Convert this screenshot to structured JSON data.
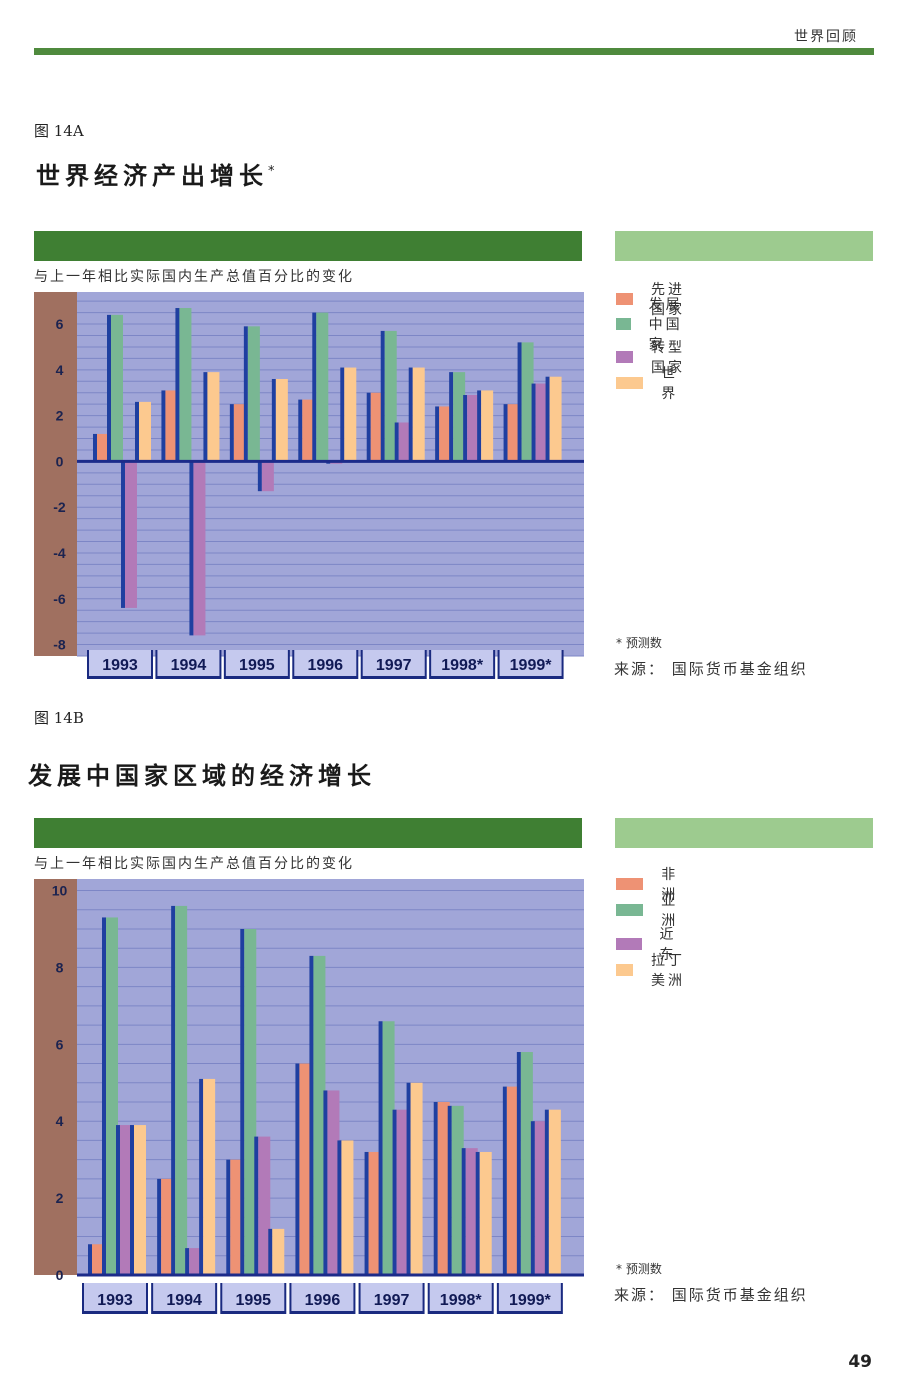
{
  "page": {
    "running_head": "世界回顾",
    "page_number": "49"
  },
  "colors": {
    "rule": "#4f8a3d",
    "band_dark": "#3f7f33",
    "band_light": "#9dcb8f",
    "plot_bg": "#a1a6d8",
    "axis_strip": "#a07060",
    "zero_line": "#1c2b8a",
    "bar_side": "#1f3fa0",
    "series": [
      "#ee9274",
      "#79b793",
      "#b27ab8",
      "#fcc98f"
    ]
  },
  "figure_a": {
    "label": "图 14A",
    "title": "世界经济产出增长",
    "title_mark": "*",
    "subtitle": "与上一年相比实际国内生产总值百分比的变化",
    "note": "* 预测数",
    "source": "来源： 国际货币基金组织"
  },
  "figure_b": {
    "label": "图 14B",
    "title": "发展中国家区域的经济增长",
    "subtitle": "与上一年相比实际国内生产总值百分比的变化",
    "note": "* 预测数",
    "source": "来源： 国际货币基金组织"
  },
  "chart_data": [
    {
      "type": "bar",
      "id": "figure_a",
      "categories": [
        "1993",
        "1994",
        "1995",
        "1996",
        "1997",
        "1998*",
        "1999*"
      ],
      "series": [
        {
          "name": "先进国家",
          "values": [
            1.2,
            3.1,
            2.5,
            2.7,
            3.0,
            2.4,
            2.5
          ]
        },
        {
          "name": "发展中国家",
          "values": [
            6.4,
            6.7,
            5.9,
            6.5,
            5.7,
            3.9,
            5.2
          ]
        },
        {
          "name": "转型国家",
          "values": [
            -6.4,
            -7.6,
            -1.3,
            -0.1,
            1.7,
            2.9,
            3.4
          ]
        },
        {
          "name": "世　界",
          "values": [
            2.6,
            3.9,
            3.6,
            4.1,
            4.1,
            3.1,
            3.7
          ]
        }
      ],
      "yticks": [
        "6",
        "4",
        "2",
        "0",
        "-2",
        "-4",
        "-6",
        "-8"
      ],
      "ylim": [
        -8.5,
        7.4
      ],
      "grid": true,
      "legend": "right"
    },
    {
      "type": "bar",
      "id": "figure_b",
      "categories": [
        "1993",
        "1994",
        "1995",
        "1996",
        "1997",
        "1998*",
        "1999*"
      ],
      "series": [
        {
          "name": "非　洲",
          "values": [
            0.8,
            2.5,
            3.0,
            5.5,
            3.2,
            4.5,
            4.9
          ]
        },
        {
          "name": "亚　洲",
          "values": [
            9.3,
            9.6,
            9.0,
            8.3,
            6.6,
            4.4,
            5.8
          ]
        },
        {
          "name": "近东",
          "values": [
            3.9,
            0.7,
            3.6,
            4.8,
            4.3,
            3.3,
            4.0
          ]
        },
        {
          "name": "拉丁美洲",
          "values": [
            3.9,
            5.1,
            1.2,
            3.5,
            5.0,
            3.2,
            4.3
          ]
        }
      ],
      "yticks": [
        "10",
        "8",
        "6",
        "4",
        "2",
        "0"
      ],
      "ylim": [
        0,
        10.3
      ],
      "grid": true,
      "legend": "right"
    }
  ]
}
